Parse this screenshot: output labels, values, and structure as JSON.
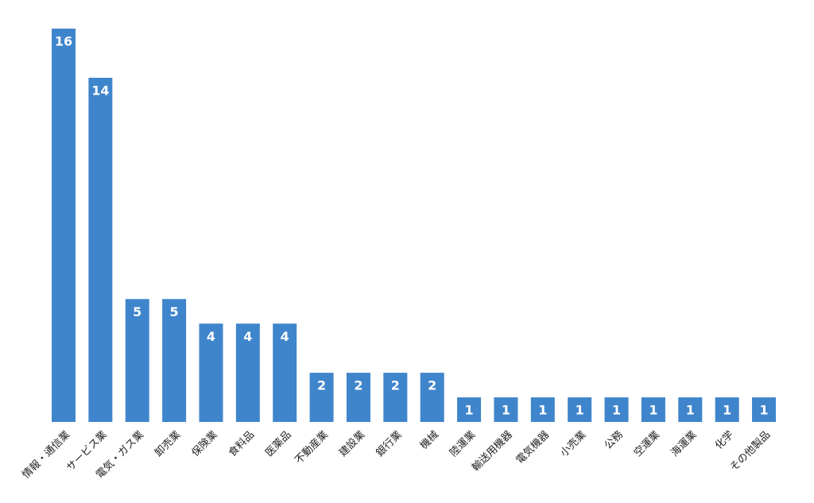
{
  "chart_data": {
    "type": "bar",
    "categories": [
      "情報・通信業",
      "サービス業",
      "電気・ガス業",
      "卸売業",
      "保険業",
      "食料品",
      "医薬品",
      "不動産業",
      "建設業",
      "銀行業",
      "機械",
      "陸運業",
      "輸送用機器",
      "電気機器",
      "小売業",
      "公務",
      "空運業",
      "海運業",
      "化学",
      "その他製品"
    ],
    "values": [
      16,
      14,
      5,
      5,
      4,
      4,
      4,
      2,
      2,
      2,
      2,
      1,
      1,
      1,
      1,
      1,
      1,
      1,
      1,
      1
    ],
    "color": "#3f85cc"
  }
}
